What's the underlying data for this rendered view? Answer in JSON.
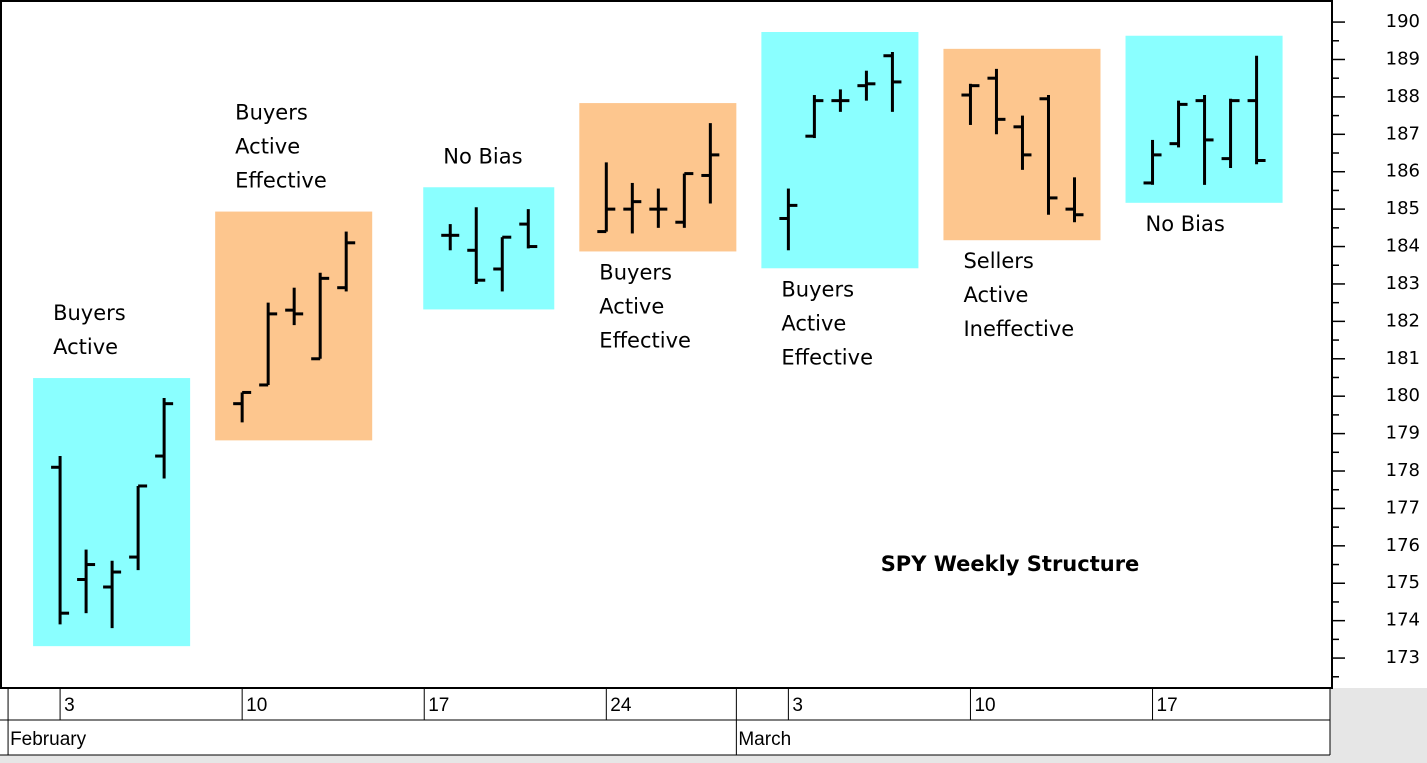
{
  "chart_data": {
    "type": "ohlc",
    "title": "SPY Weekly Structure",
    "ylim": [
      172.2,
      190.59
    ],
    "yticks": [
      173,
      174,
      175,
      176,
      177,
      178,
      179,
      180,
      181,
      182,
      183,
      184,
      185,
      186,
      187,
      188,
      189,
      190
    ],
    "yticks_minor": [
      172.5,
      173.5,
      174.5,
      175.5,
      176.5,
      177.5,
      178.5,
      179.5,
      180.5,
      181.5,
      182.5,
      183.5,
      184.5,
      185.5,
      186.5,
      187.5,
      188.5,
      189.5
    ],
    "xlim": [
      -2.31,
      48.9
    ],
    "xticks": [
      {
        "value": 0,
        "label": "3"
      },
      {
        "value": 7,
        "label": "10"
      },
      {
        "value": 14,
        "label": "17"
      },
      {
        "value": 21,
        "label": "24"
      },
      {
        "value": 28,
        "label": "3"
      },
      {
        "value": 35,
        "label": "10"
      },
      {
        "value": 42,
        "label": "17"
      }
    ],
    "xticks_month": [
      {
        "value": -2,
        "label": "February"
      },
      {
        "value": 26,
        "label": "March"
      }
    ],
    "weeks": [
      {
        "label": [
          "Buyers",
          "Active"
        ],
        "label_position": "above",
        "color": "#8affff",
        "bars": [
          {
            "x": 0,
            "open": 178.1,
            "high": 178.4,
            "low": 173.9,
            "close": 174.2
          },
          {
            "x": 1,
            "open": 175.1,
            "high": 175.9,
            "low": 174.2,
            "close": 175.5
          },
          {
            "x": 2,
            "open": 174.9,
            "high": 175.6,
            "low": 173.8,
            "close": 175.3
          },
          {
            "x": 3,
            "open": 175.7,
            "high": 177.6,
            "low": 175.35,
            "close": 177.6
          },
          {
            "x": 4,
            "open": 178.4,
            "high": 179.95,
            "low": 177.8,
            "close": 179.8
          }
        ]
      },
      {
        "label": [
          "Buyers",
          "Active",
          "Effective"
        ],
        "label_position": "above",
        "color": "#fdc68e",
        "bars": [
          {
            "x": 7,
            "open": 179.8,
            "high": 180.1,
            "low": 179.3,
            "close": 180.1
          },
          {
            "x": 8,
            "open": 180.3,
            "high": 182.5,
            "low": 180.3,
            "close": 182.2
          },
          {
            "x": 9,
            "open": 182.3,
            "high": 182.9,
            "low": 181.9,
            "close": 182.2
          },
          {
            "x": 10,
            "open": 181.0,
            "high": 183.3,
            "low": 181.0,
            "close": 183.15
          },
          {
            "x": 11,
            "open": 182.9,
            "high": 184.4,
            "low": 182.8,
            "close": 184.1
          }
        ]
      },
      {
        "label": [
          "No Bias"
        ],
        "label_position": "above",
        "color": "#8affff",
        "bars": [
          {
            "x": 15,
            "open": 184.3,
            "high": 184.6,
            "low": 183.9,
            "close": 184.3
          },
          {
            "x": 16,
            "open": 183.9,
            "high": 185.05,
            "low": 183.0,
            "close": 183.1
          },
          {
            "x": 17,
            "open": 183.4,
            "high": 184.25,
            "low": 182.8,
            "close": 184.25
          },
          {
            "x": 18,
            "open": 184.6,
            "high": 185.0,
            "low": 183.95,
            "close": 184.0
          }
        ]
      },
      {
        "label": [
          "Buyers",
          "Active",
          "Effective"
        ],
        "label_position": "below",
        "color": "#fdc68e",
        "bars": [
          {
            "x": 21,
            "open": 184.4,
            "high": 186.25,
            "low": 184.4,
            "close": 185.0
          },
          {
            "x": 22,
            "open": 185.0,
            "high": 185.7,
            "low": 184.35,
            "close": 185.2
          },
          {
            "x": 23,
            "open": 185.0,
            "high": 185.55,
            "low": 184.5,
            "close": 185.0
          },
          {
            "x": 24,
            "open": 184.65,
            "high": 185.95,
            "low": 184.5,
            "close": 185.95
          },
          {
            "x": 25,
            "open": 185.9,
            "high": 187.3,
            "low": 185.15,
            "close": 186.45
          }
        ]
      },
      {
        "label": [
          "Buyers",
          "Active",
          "Effective"
        ],
        "label_position": "below",
        "color": "#8affff",
        "bars": [
          {
            "x": 28,
            "open": 184.75,
            "high": 185.55,
            "low": 183.9,
            "close": 185.1
          },
          {
            "x": 29,
            "open": 186.95,
            "high": 188.05,
            "low": 186.9,
            "close": 187.9
          },
          {
            "x": 30,
            "open": 187.9,
            "high": 188.2,
            "low": 187.6,
            "close": 187.9
          },
          {
            "x": 31,
            "open": 188.3,
            "high": 188.7,
            "low": 187.9,
            "close": 188.35
          },
          {
            "x": 32,
            "open": 189.1,
            "high": 189.2,
            "low": 187.6,
            "close": 188.4
          }
        ]
      },
      {
        "label": [
          "Sellers",
          "Active",
          "Ineffective"
        ],
        "label_position": "below",
        "color": "#fdc68e",
        "bars": [
          {
            "x": 35,
            "open": 188.05,
            "high": 188.35,
            "low": 187.25,
            "close": 188.3
          },
          {
            "x": 36,
            "open": 188.5,
            "high": 188.75,
            "low": 187.0,
            "close": 187.4
          },
          {
            "x": 37,
            "open": 187.2,
            "high": 187.5,
            "low": 186.05,
            "close": 186.45
          },
          {
            "x": 38,
            "open": 187.95,
            "high": 188.05,
            "low": 184.85,
            "close": 185.3
          },
          {
            "x": 39,
            "open": 185.0,
            "high": 185.85,
            "low": 184.65,
            "close": 184.85
          }
        ]
      },
      {
        "label": [
          "No Bias"
        ],
        "label_position": "below",
        "color": "#8affff",
        "bars": [
          {
            "x": 42,
            "open": 185.7,
            "high": 186.85,
            "low": 185.65,
            "close": 186.45
          },
          {
            "x": 43,
            "open": 186.75,
            "high": 187.9,
            "low": 186.65,
            "close": 187.8
          },
          {
            "x": 44,
            "open": 187.9,
            "high": 188.05,
            "low": 185.65,
            "close": 186.85
          },
          {
            "x": 45,
            "open": 186.35,
            "high": 187.95,
            "low": 186.1,
            "close": 187.9
          },
          {
            "x": 46,
            "open": 187.9,
            "high": 189.1,
            "low": 186.2,
            "close": 186.3
          }
        ]
      }
    ]
  }
}
